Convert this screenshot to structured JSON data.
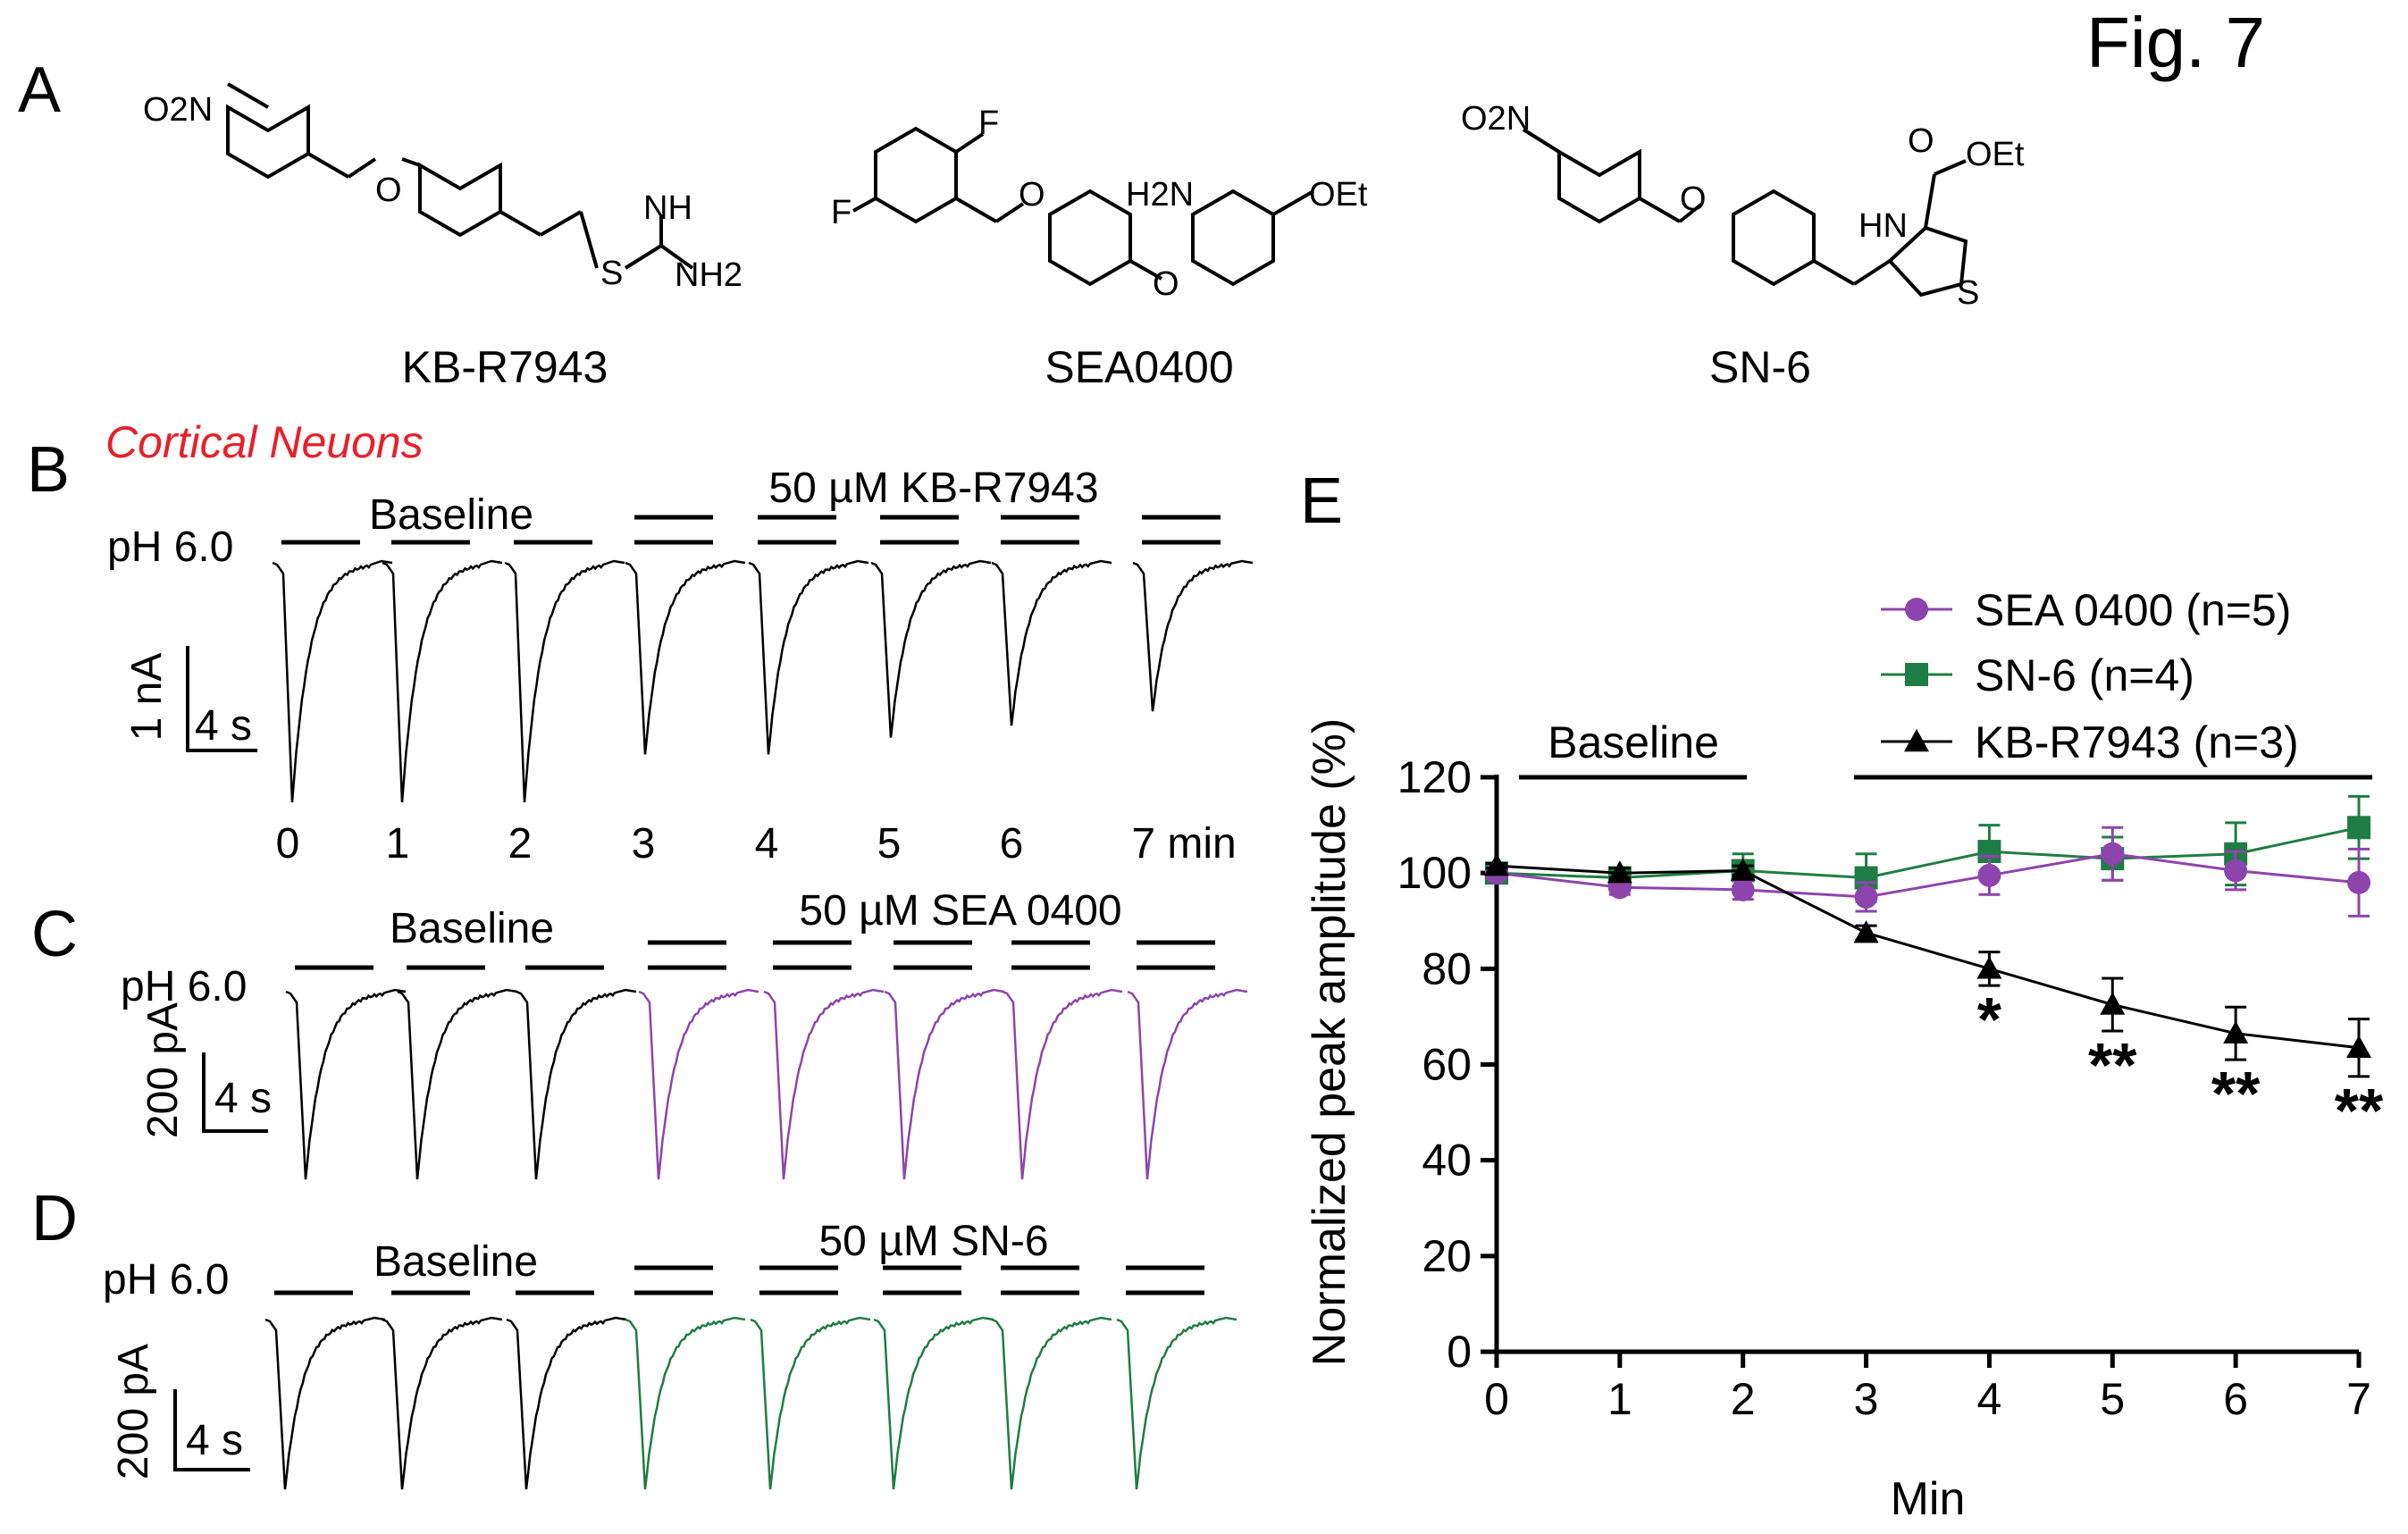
{
  "figure_label": "Fig. 7",
  "panels": {
    "A": {
      "letter": "A",
      "compounds": [
        {
          "name": "KB-R7943",
          "substituents": [
            "O2N",
            "O",
            "NH",
            "S",
            "NH2"
          ]
        },
        {
          "name": "SEA0400",
          "substituents": [
            "F",
            "F",
            "O",
            "H2N",
            "OEt",
            "O"
          ]
        },
        {
          "name": "SN-6",
          "substituents": [
            "O2N",
            "O",
            "O",
            "OEt",
            "HN",
            "S"
          ]
        }
      ]
    },
    "B": {
      "letter": "B",
      "cell_type": "Cortical Neuons",
      "ph_label": "pH 6.0",
      "baseline_label": "Baseline",
      "drug_label": "50 µM KB-R7943",
      "scale_y": "1 nA",
      "scale_x": "4 s",
      "time_labels": [
        "0",
        "1",
        "2",
        "3",
        "4",
        "5",
        "6",
        "7 min"
      ]
    },
    "C": {
      "letter": "C",
      "ph_label": "pH 6.0",
      "baseline_label": "Baseline",
      "drug_label": "50 µM SEA 0400",
      "scale_y": "200 pA",
      "scale_x": "4 s"
    },
    "D": {
      "letter": "D",
      "ph_label": "pH 6.0",
      "baseline_label": "Baseline",
      "drug_label": "50 µM SN-6",
      "scale_y": "200 pA",
      "scale_x": "4 s"
    },
    "E": {
      "letter": "E",
      "baseline_label": "Baseline"
    }
  },
  "trace_data": {
    "B_relative_peak": [
      1.0,
      1.0,
      1.0,
      0.8,
      0.8,
      0.73,
      0.68,
      0.62
    ],
    "C_relative_peak": [
      1.0,
      1.0,
      1.0,
      1.0,
      1.0,
      1.0,
      1.0,
      1.0
    ],
    "D_relative_peak": [
      1.0,
      1.0,
      1.0,
      1.0,
      1.0,
      1.0,
      1.0,
      1.0
    ],
    "baseline_color": "#000000",
    "C_drug_color": "#8e44ad",
    "D_drug_color": "#1e7d44"
  },
  "chart_data": {
    "type": "line",
    "title": "",
    "xlabel": "Min",
    "ylabel": "Normalized peak amplitude (%)",
    "xlim": [
      0,
      7
    ],
    "ylim": [
      0,
      120
    ],
    "xticks": [
      "0",
      "1",
      "2",
      "3",
      "4",
      "5",
      "6",
      "7"
    ],
    "yticks": [
      "0",
      "20",
      "40",
      "60",
      "80",
      "100",
      "120"
    ],
    "x": [
      0,
      1,
      2,
      3,
      4,
      5,
      6,
      7
    ],
    "series": [
      {
        "name": "SEA 0400 (n=5)",
        "color": "#8e44ad",
        "marker": "circle",
        "values": [
          100,
          97,
          96.5,
          95,
          99.5,
          104,
          100.5,
          98
        ],
        "errors": [
          1,
          1.5,
          2,
          3,
          4,
          5.5,
          4,
          7
        ]
      },
      {
        "name": "SN-6 (n=4)",
        "color": "#1e7d44",
        "marker": "square",
        "values": [
          100,
          99,
          100.5,
          99,
          104.5,
          103,
          104,
          109.5
        ],
        "errors": [
          1,
          2,
          3.5,
          5,
          5.5,
          4.5,
          6.5,
          6.5
        ]
      },
      {
        "name": "KB-R7943 (n=3)",
        "color": "#000000",
        "marker": "triangle",
        "values": [
          101.5,
          100,
          100.5,
          87.5,
          80,
          72.5,
          66.5,
          63.5
        ],
        "errors": [
          0.5,
          1,
          1,
          1.5,
          3.5,
          5.5,
          5.5,
          6
        ]
      }
    ],
    "significance": [
      {
        "x": 4,
        "label": "*"
      },
      {
        "x": 5,
        "label": "**"
      },
      {
        "x": 6,
        "label": "**"
      },
      {
        "x": 7,
        "label": "**"
      }
    ],
    "legend_position": "top-right"
  }
}
